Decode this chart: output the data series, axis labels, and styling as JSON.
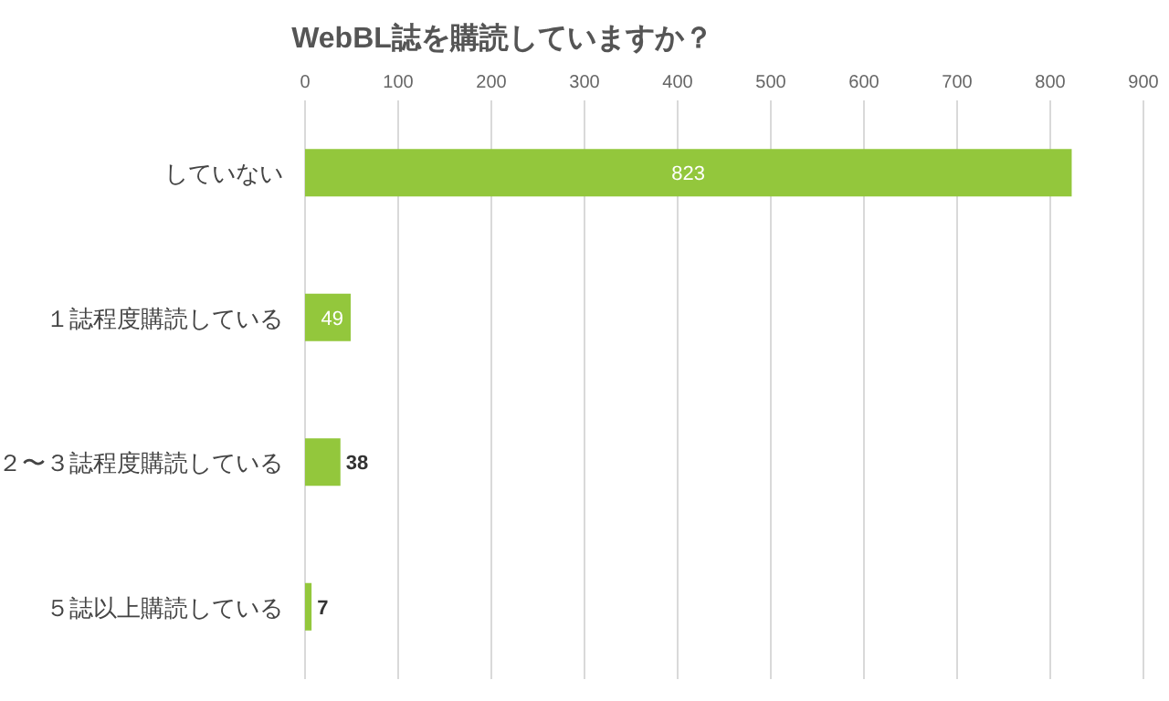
{
  "chart_data": {
    "type": "bar",
    "orientation": "horizontal",
    "title": "WebBL誌を購読していますか？",
    "categories": [
      "していない",
      "１誌程度購読している",
      "２〜３誌程度購読している",
      "５誌以上購読している"
    ],
    "values": [
      823,
      49,
      38,
      7
    ],
    "color": "#93c73c",
    "xlim": [
      0,
      900
    ],
    "xticks": [
      0,
      100,
      200,
      300,
      400,
      500,
      600,
      700,
      800,
      900
    ],
    "grid": "x",
    "data_labels": true
  }
}
